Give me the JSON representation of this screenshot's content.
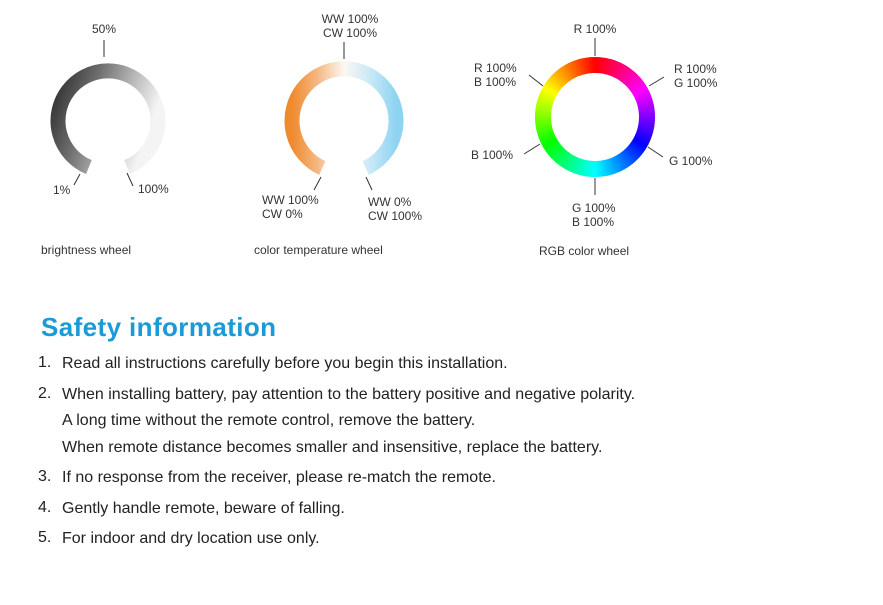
{
  "wheels": {
    "brightness": {
      "label_top": "50%",
      "label_min": "1%",
      "label_max": "100%",
      "caption_bold": "brightness",
      "caption_rest": " wheel"
    },
    "color_temperature": {
      "top_line1": "WW 100%",
      "top_line2": "CW 100%",
      "left_line1": "WW 100%",
      "left_line2": "CW  0%",
      "right_line1": "WW 0%",
      "right_line2": "CW 100%",
      "caption_bold": "color temperature",
      "caption_rest": " wheel",
      "warm_color": "#ef8a2e",
      "cool_color": "#8fd3f2"
    },
    "rgb": {
      "top": "R 100%",
      "upper_right_line1": "R 100%",
      "upper_right_line2": "G 100%",
      "right": "G 100%",
      "bottom_line1": "G 100%",
      "bottom_line2": "B 100%",
      "left": "B 100%",
      "upper_left_line1": "R 100%",
      "upper_left_line2": "B 100%",
      "caption_bold": "RGB color",
      "caption_rest": " wheel"
    }
  },
  "safety": {
    "title": "Safety information",
    "title_color": "#1a9ad6",
    "items": [
      {
        "num": "1.",
        "lines": [
          "Read all instructions carefully before you begin this installation."
        ]
      },
      {
        "num": "2.",
        "lines": [
          "When installing battery, pay attention to the battery positive and negative polarity.",
          "A long time without the remote control, remove the battery.",
          "When remote distance becomes smaller and insensitive, replace the battery."
        ]
      },
      {
        "num": "3.",
        "lines": [
          "If no response from the receiver, please re-match the remote."
        ]
      },
      {
        "num": "4.",
        "lines": [
          "Gently handle remote, beware of falling."
        ]
      },
      {
        "num": "5.",
        "lines": [
          "For indoor and dry location use only."
        ]
      }
    ]
  }
}
